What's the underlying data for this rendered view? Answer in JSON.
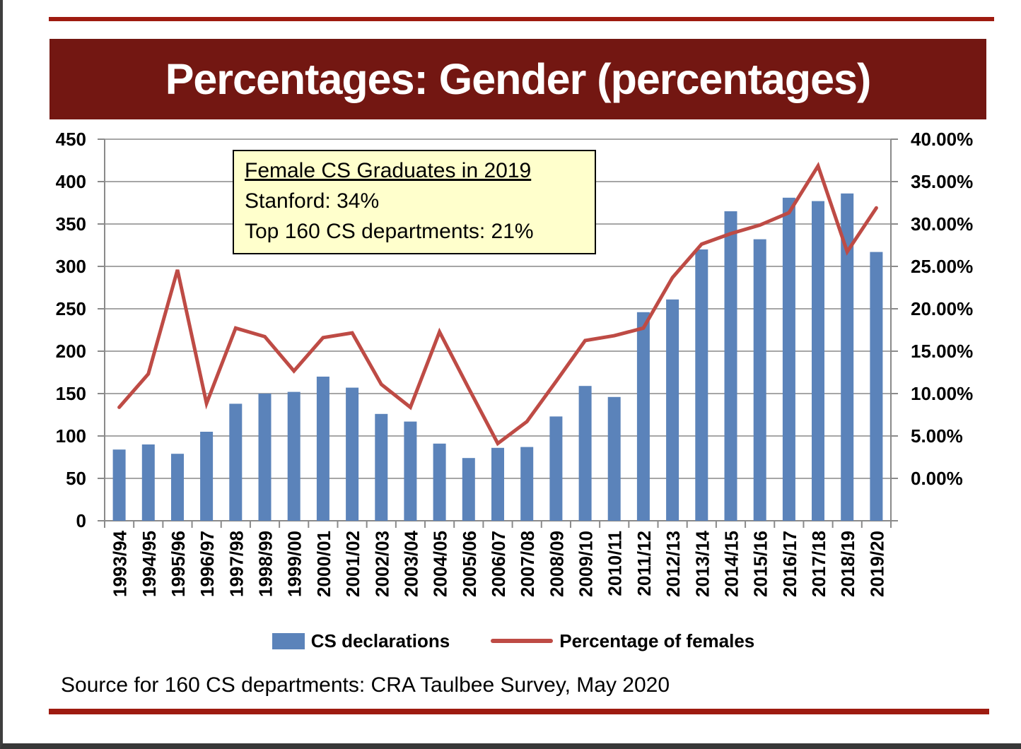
{
  "slide": {
    "title": "Percentages: Gender (percentages)"
  },
  "callout": {
    "title": "Female CS Graduates in 2019",
    "lines": [
      "Stanford: 34%",
      "Top 160 CS departments: 21%"
    ]
  },
  "footer": {
    "source": "Source for 160 CS departments: CRA Taulbee Survey, May 2020"
  },
  "colors": {
    "banner": "#731712",
    "accent_rule": "#9e1b10",
    "bar": "#5b83ba",
    "line": "#be4b45",
    "gridline": "#a6a6a6",
    "axis": "#8a8a8a",
    "callout_bg": "#ffffcc"
  },
  "chart_data": {
    "type": "bar",
    "subtype": "bar+line combo, dual axis",
    "grid": true,
    "legend_position": "bottom",
    "categories": [
      "1993/94",
      "1994/95",
      "1995/96",
      "1996/97",
      "1997/98",
      "1998/99",
      "1999/00",
      "2000/01",
      "2001/02",
      "2002/03",
      "2003/04",
      "2004/05",
      "2005/06",
      "2006/07",
      "2007/08",
      "2008/09",
      "2009/10",
      "2010/11",
      "2011/12",
      "2012/13",
      "2013/14",
      "2014/15",
      "2015/16",
      "2016/17",
      "2017/18",
      "2018/19",
      "2019/20"
    ],
    "series": [
      {
        "name": "CS declarations",
        "type": "bar",
        "axis": "left",
        "values": [
          84,
          90,
          79,
          105,
          138,
          150,
          152,
          170,
          157,
          126,
          117,
          91,
          74,
          86,
          87,
          123,
          159,
          146,
          246,
          261,
          320,
          365,
          332,
          381,
          377,
          386,
          317
        ]
      },
      {
        "name": "Percentage of females",
        "type": "line",
        "axis": "right",
        "values": [
          11.9,
          15.4,
          26.3,
          12.3,
          20.2,
          19.3,
          15.7,
          19.2,
          19.7,
          14.3,
          11.9,
          19.8,
          13.9,
          8.1,
          10.4,
          14.6,
          18.9,
          19.4,
          20.2,
          25.5,
          29.0,
          30.1,
          31.0,
          32.3,
          37.2,
          28.2,
          32.8
        ]
      }
    ],
    "left_axis": {
      "min": 0,
      "max": 450,
      "step": 50,
      "tick_labels": [
        "450",
        "400",
        "350",
        "300",
        "250",
        "200",
        "150",
        "100",
        "50",
        "0"
      ]
    },
    "right_axis": {
      "min": 0,
      "max": 40,
      "step": 5,
      "tick_labels": [
        "40.00%",
        "35.00%",
        "30.00%",
        "25.00%",
        "20.00%",
        "15.00%",
        "10.00%",
        "5.00%",
        "0.00%"
      ]
    }
  }
}
